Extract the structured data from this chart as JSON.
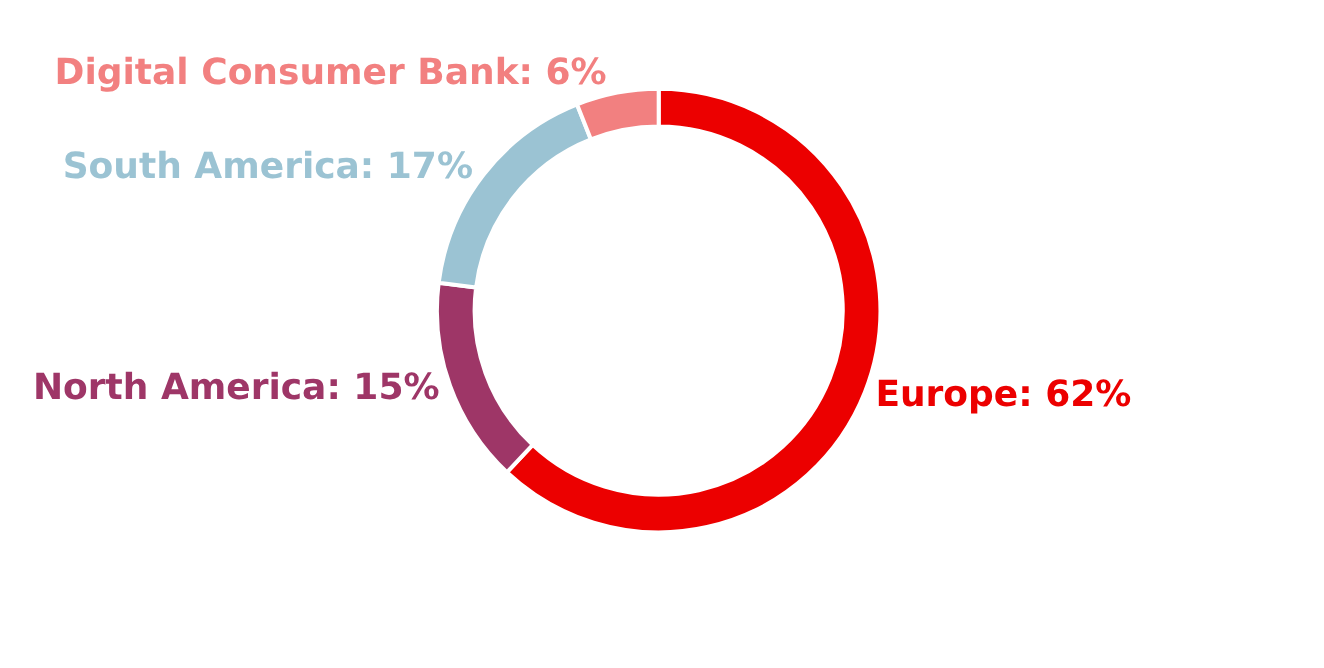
{
  "chart_data": {
    "type": "donut",
    "categories": [
      "Europe",
      "North America",
      "South America",
      "Digital Consumer Bank"
    ],
    "values": [
      62,
      15,
      17,
      6
    ],
    "value_labels": [
      "62%",
      "15%",
      "17%",
      "6%"
    ],
    "colors": [
      "#ec0000",
      "#9e3667",
      "#9bc3d3",
      "#f28080"
    ],
    "legend": false
  }
}
